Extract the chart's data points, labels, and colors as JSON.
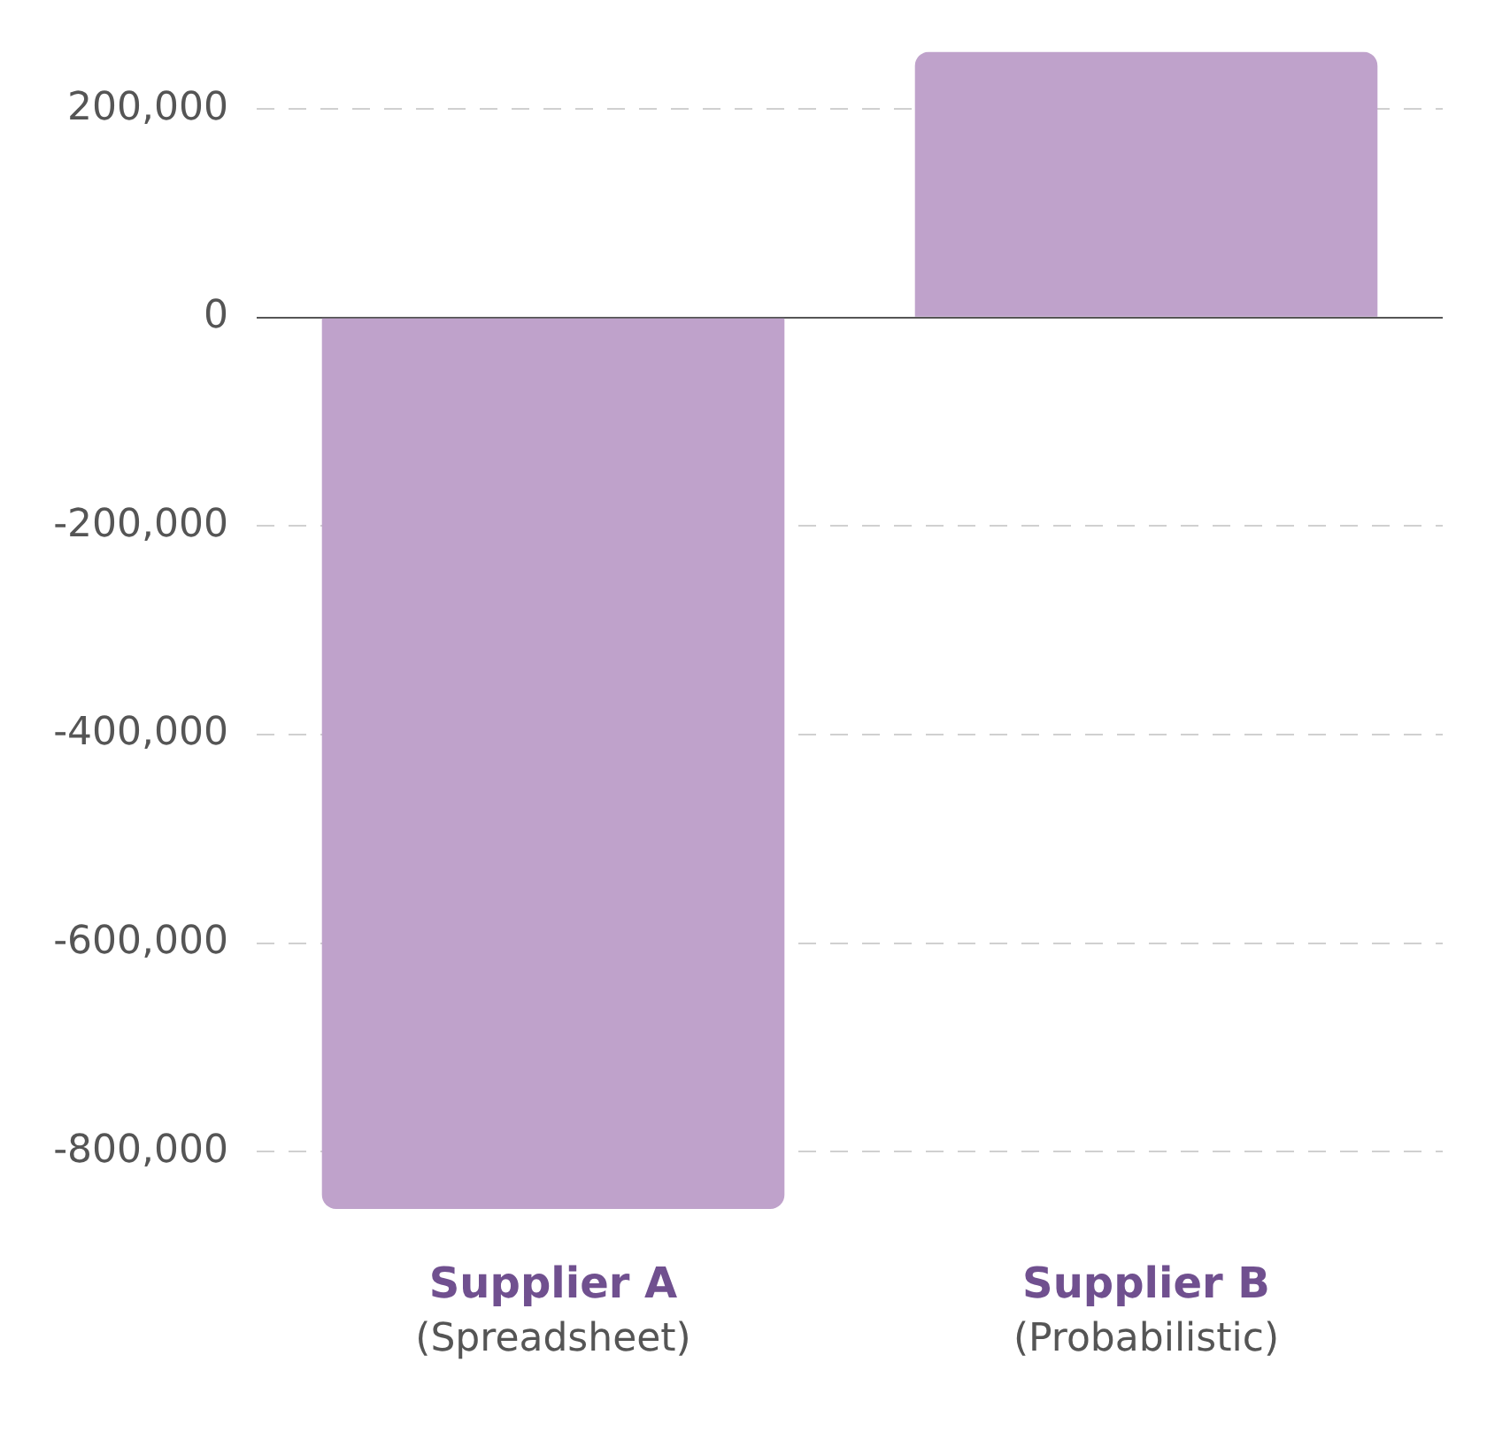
{
  "chart_data": {
    "type": "bar",
    "categories": [
      "Supplier A\n(Spreadsheet)",
      "Supplier B\n(Probabilistic)"
    ],
    "values": [
      -855000,
      255000
    ],
    "color": "#bfa2cb",
    "ylim": [
      -855000,
      255000
    ],
    "yticks": [
      {
        "value": -800000,
        "label": "-800,000"
      },
      {
        "value": -600000,
        "label": "-600,000"
      },
      {
        "value": -400000,
        "label": "-400,000"
      },
      {
        "value": -200000,
        "label": "-200,000"
      },
      0,
      {
        "value": 200000,
        "label": "200,000"
      }
    ],
    "grid": "y",
    "legend": false
  }
}
